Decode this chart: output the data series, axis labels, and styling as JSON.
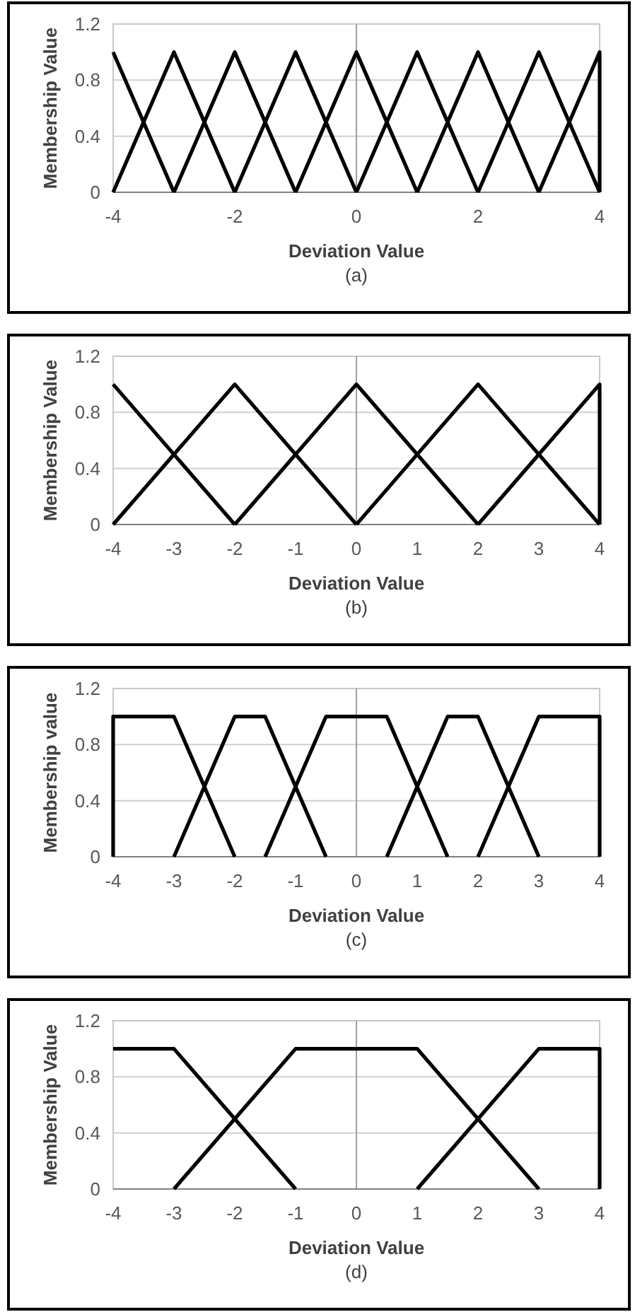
{
  "chart_data": [
    {
      "type": "line",
      "xlabel": "Deviation Value",
      "ylabel": "Membership Value",
      "annotations": [
        "(a)"
      ],
      "xlim": [
        -4,
        4
      ],
      "xticks": [
        -4,
        -2,
        0,
        2,
        4
      ],
      "ylim": [
        0,
        1.2
      ],
      "yticks": [
        0,
        0.4,
        0.8,
        1.2
      ],
      "grid": "y",
      "line_style": "solid",
      "series": [
        {
          "color": "#000000",
          "x": [
            -4,
            -3
          ],
          "values": [
            1,
            0
          ]
        },
        {
          "color": "#000000",
          "x": [
            -4,
            -3,
            -2
          ],
          "values": [
            0,
            1,
            0
          ]
        },
        {
          "color": "#000000",
          "x": [
            -3,
            -2,
            -1
          ],
          "values": [
            0,
            1,
            0
          ]
        },
        {
          "color": "#000000",
          "x": [
            -2,
            -1,
            0
          ],
          "values": [
            0,
            1,
            0
          ]
        },
        {
          "color": "#000000",
          "x": [
            -1,
            0,
            1
          ],
          "values": [
            0,
            1,
            0
          ]
        },
        {
          "color": "#000000",
          "x": [
            0,
            1,
            2
          ],
          "values": [
            0,
            1,
            0
          ]
        },
        {
          "color": "#000000",
          "x": [
            1,
            2,
            3
          ],
          "values": [
            0,
            1,
            0
          ]
        },
        {
          "color": "#000000",
          "x": [
            2,
            3,
            4
          ],
          "values": [
            0,
            1,
            0
          ]
        },
        {
          "color": "#000000",
          "x": [
            3,
            4,
            4
          ],
          "values": [
            0,
            1,
            0
          ]
        }
      ]
    },
    {
      "type": "line",
      "xlabel": "Deviation Value",
      "ylabel": "Membership Value",
      "annotations": [
        "(b)"
      ],
      "xlim": [
        -4,
        4
      ],
      "xticks": [
        -4,
        -3,
        -2,
        -1,
        0,
        1,
        2,
        3,
        4
      ],
      "ylim": [
        0,
        1.2
      ],
      "yticks": [
        0,
        0.4,
        0.8,
        1.2
      ],
      "grid": "y",
      "line_style": "solid",
      "series": [
        {
          "color": "#000000",
          "x": [
            -4,
            -2
          ],
          "values": [
            1,
            0
          ]
        },
        {
          "color": "#000000",
          "x": [
            -4,
            -2,
            0
          ],
          "values": [
            0,
            1,
            0
          ]
        },
        {
          "color": "#000000",
          "x": [
            -2,
            0,
            2
          ],
          "values": [
            0,
            1,
            0
          ]
        },
        {
          "color": "#000000",
          "x": [
            0,
            2,
            4
          ],
          "values": [
            0,
            1,
            0
          ]
        },
        {
          "color": "#000000",
          "x": [
            2,
            4,
            4
          ],
          "values": [
            0,
            1,
            0
          ]
        }
      ]
    },
    {
      "type": "line",
      "xlabel": "Deviation Value",
      "ylabel": "Membership value",
      "annotations": [
        "(c)"
      ],
      "xlim": [
        -4,
        4
      ],
      "xticks": [
        -4,
        -3,
        -2,
        -1,
        0,
        1,
        2,
        3,
        4
      ],
      "ylim": [
        0,
        1.2
      ],
      "yticks": [
        0,
        0.4,
        0.8,
        1.2
      ],
      "grid": "y",
      "line_style": "solid",
      "series": [
        {
          "color": "#000000",
          "x": [
            -4,
            -4,
            -3,
            -2
          ],
          "values": [
            0,
            1,
            1,
            0
          ]
        },
        {
          "color": "#000000",
          "x": [
            -3,
            -2,
            -1.5,
            -0.5
          ],
          "values": [
            0,
            1,
            1,
            0
          ]
        },
        {
          "color": "#000000",
          "x": [
            -1.5,
            -0.5,
            0.5,
            1.5
          ],
          "values": [
            0,
            1,
            1,
            0
          ]
        },
        {
          "color": "#000000",
          "x": [
            0.5,
            1.5,
            2,
            3
          ],
          "values": [
            0,
            1,
            1,
            0
          ]
        },
        {
          "color": "#000000",
          "x": [
            2,
            3,
            4,
            4
          ],
          "values": [
            0,
            1,
            1,
            0
          ]
        }
      ]
    },
    {
      "type": "line",
      "xlabel": "Deviation Value",
      "ylabel": "Membership Value",
      "annotations": [
        "(d)"
      ],
      "xlim": [
        -4,
        4
      ],
      "xticks": [
        -4,
        -3,
        -2,
        -1,
        0,
        1,
        2,
        3,
        4
      ],
      "ylim": [
        0,
        1.2
      ],
      "yticks": [
        0,
        0.4,
        0.8,
        1.2
      ],
      "grid": "y",
      "line_style": "solid",
      "series": [
        {
          "color": "#000000",
          "x": [
            -4,
            -3,
            -1
          ],
          "values": [
            1,
            1,
            0
          ]
        },
        {
          "color": "#000000",
          "x": [
            -3,
            -1,
            1,
            3
          ],
          "values": [
            0,
            1,
            1,
            0
          ]
        },
        {
          "color": "#000000",
          "x": [
            1,
            3,
            4,
            4
          ],
          "values": [
            0,
            1,
            1,
            0
          ]
        }
      ]
    }
  ]
}
